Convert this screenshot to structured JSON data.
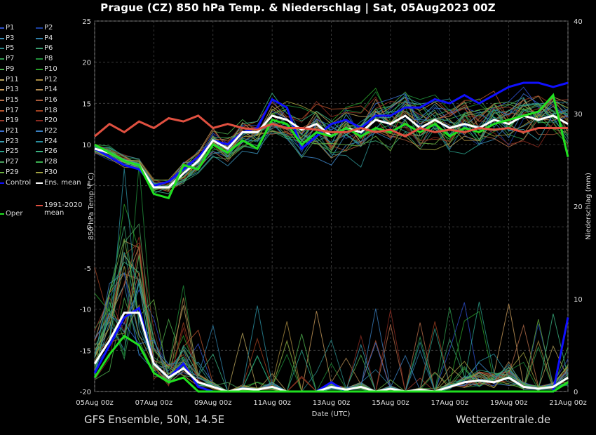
{
  "title": "Prague  (CZ)  850 hPa Temp. & Niederschlag | Sat, 05Aug2023 00Z",
  "footer_left": "GFS Ensemble, 50N, 14.5E",
  "footer_right": "Wetterzentrale.de",
  "chart_data": {
    "type": "line",
    "xlabel": "Date (UTC)",
    "ylabel_left": "850 hPa Temp. (°C)",
    "ylabel_right": "Niederschlag (mm)",
    "x_ticks": [
      "05Aug 00z",
      "07Aug 00z",
      "09Aug 00z",
      "11Aug 00z",
      "13Aug 00z",
      "15Aug 00z",
      "17Aug 00z",
      "19Aug 00z",
      "21Aug 00z"
    ],
    "ylim_left": [
      -20,
      25
    ],
    "yticks_left": [
      25,
      20,
      15,
      10,
      5,
      0,
      -5,
      -10,
      -15,
      -20
    ],
    "ylim_right": [
      0,
      40
    ],
    "yticks_right": [
      40,
      30,
      20,
      10,
      0
    ],
    "grid": true,
    "x_days": [
      0,
      0.5,
      1,
      1.5,
      2,
      2.5,
      3,
      3.5,
      4,
      4.5,
      5,
      5.5,
      6,
      6.5,
      7,
      7.5,
      8,
      8.5,
      9,
      9.5,
      10,
      10.5,
      11,
      11.5,
      12,
      12.5,
      13,
      13.5,
      14,
      14.5,
      15,
      15.5,
      16
    ],
    "legend_entries": [
      {
        "name": "P1",
        "color": "#2e4fcc"
      },
      {
        "name": "P2",
        "color": "#1b3fa0"
      },
      {
        "name": "P3",
        "color": "#3a8fb8"
      },
      {
        "name": "P4",
        "color": "#2f7fa8"
      },
      {
        "name": "P5",
        "color": "#2b8a8a"
      },
      {
        "name": "P6",
        "color": "#3aa070"
      },
      {
        "name": "P7",
        "color": "#2e9a4e"
      },
      {
        "name": "P8",
        "color": "#1f8f3a"
      },
      {
        "name": "P9",
        "color": "#4db04d"
      },
      {
        "name": "P10",
        "color": "#2aa02a"
      },
      {
        "name": "P11",
        "color": "#b7a35a"
      },
      {
        "name": "P12",
        "color": "#a88a40"
      },
      {
        "name": "P13",
        "color": "#c79a5a"
      },
      {
        "name": "P14",
        "color": "#b08850"
      },
      {
        "name": "P15",
        "color": "#b86e4a"
      },
      {
        "name": "P16",
        "color": "#a85a3a"
      },
      {
        "name": "P17",
        "color": "#b8542e"
      },
      {
        "name": "P18",
        "color": "#a04020"
      },
      {
        "name": "P19",
        "color": "#9a3a2a"
      },
      {
        "name": "P20",
        "color": "#8a2a20"
      },
      {
        "name": "P21",
        "color": "#3a6fd0"
      },
      {
        "name": "P22",
        "color": "#3a7fc0"
      },
      {
        "name": "P23",
        "color": "#3a9fb0"
      },
      {
        "name": "P24",
        "color": "#2a8fa0"
      },
      {
        "name": "P25",
        "color": "#2aa08a"
      },
      {
        "name": "P26",
        "color": "#3ab080"
      },
      {
        "name": "P27",
        "color": "#4aa060"
      },
      {
        "name": "P28",
        "color": "#3ab050"
      },
      {
        "name": "P29",
        "color": "#6ab040"
      },
      {
        "name": "P30",
        "color": "#a0a040"
      },
      {
        "name": "Control",
        "color": "#1010ff"
      },
      {
        "name": "Ens. mean",
        "color": "#ffffff"
      },
      {
        "name": "1991-2020\nmean",
        "color": "#e05040"
      },
      {
        "name": "Oper",
        "color": "#20e020"
      }
    ],
    "series_main": [
      {
        "name": "Control",
        "color": "#1010ff",
        "width": 3,
        "values": [
          9.5,
          8.5,
          7.5,
          7,
          5,
          5.5,
          7,
          8.5,
          10.5,
          10,
          11.5,
          12,
          15.5,
          14.5,
          9.5,
          11,
          12.5,
          13,
          12,
          13.5,
          13.5,
          14.5,
          14.5,
          15.5,
          15,
          16,
          15,
          16,
          17,
          17.5,
          17.5,
          17,
          17.5
        ]
      },
      {
        "name": "Ens. mean",
        "color": "#ffffff",
        "width": 3,
        "values": [
          9.5,
          9,
          8,
          7.5,
          4.8,
          4.8,
          6.5,
          8,
          10.5,
          9.5,
          11.5,
          11.5,
          13.5,
          13,
          11.8,
          12.5,
          11,
          12,
          11.5,
          13,
          12.5,
          13.5,
          12,
          13,
          12,
          12.5,
          12,
          13,
          12.5,
          13.5,
          13,
          13.5,
          12.5
        ]
      },
      {
        "name": "Oper",
        "color": "#20e020",
        "width": 3,
        "values": [
          10,
          9,
          8,
          7.5,
          4,
          3.5,
          7.5,
          7,
          10,
          9,
          10.5,
          9.5,
          13,
          12.5,
          10,
          11.5,
          11,
          12,
          11,
          12,
          11.5,
          12.5,
          11.5,
          12.5,
          11,
          12,
          11.5,
          12.5,
          13,
          13.5,
          14,
          16,
          8.5
        ]
      },
      {
        "name": "1991-2020 mean",
        "color": "#e05040",
        "width": 3,
        "values": [
          11,
          12.5,
          11.5,
          12.8,
          12,
          13.2,
          12.8,
          13.5,
          12,
          12.5,
          12,
          11.8,
          12.5,
          12,
          12,
          11.8,
          11.5,
          11.5,
          12,
          11.5,
          11.8,
          11,
          12,
          11.5,
          11.8,
          11.5,
          12,
          11.8,
          12,
          11.5,
          12,
          12,
          12
        ]
      }
    ],
    "precip_main": [
      {
        "name": "Control",
        "color": "#1010ff",
        "values": [
          2,
          5,
          8,
          9,
          3,
          1.5,
          3,
          0.5,
          0,
          0,
          0,
          0,
          0,
          0,
          0,
          0,
          1,
          0,
          0,
          0,
          0,
          0,
          0,
          0,
          0,
          0,
          0,
          0,
          0,
          0,
          0,
          0,
          8
        ]
      },
      {
        "name": "Ens. mean",
        "color": "#ffffff",
        "values": [
          3,
          5.5,
          8.5,
          8.5,
          3,
          1.5,
          2.5,
          1,
          0.5,
          0,
          0.3,
          0.2,
          0.5,
          0,
          0,
          0,
          0.5,
          0.2,
          0.5,
          0,
          0.3,
          0,
          0.2,
          0,
          0.5,
          1,
          1.2,
          1,
          1.5,
          0.5,
          0.3,
          0.5,
          1.5
        ]
      },
      {
        "name": "Oper",
        "color": "#20e020",
        "values": [
          1.5,
          4,
          6,
          5,
          2,
          1,
          1.5,
          0,
          0,
          0,
          0,
          0,
          0,
          0,
          0,
          0,
          0,
          0,
          0,
          0,
          0,
          0,
          0,
          0,
          0,
          0,
          0,
          0,
          0,
          0,
          0,
          0,
          1
        ]
      }
    ]
  }
}
